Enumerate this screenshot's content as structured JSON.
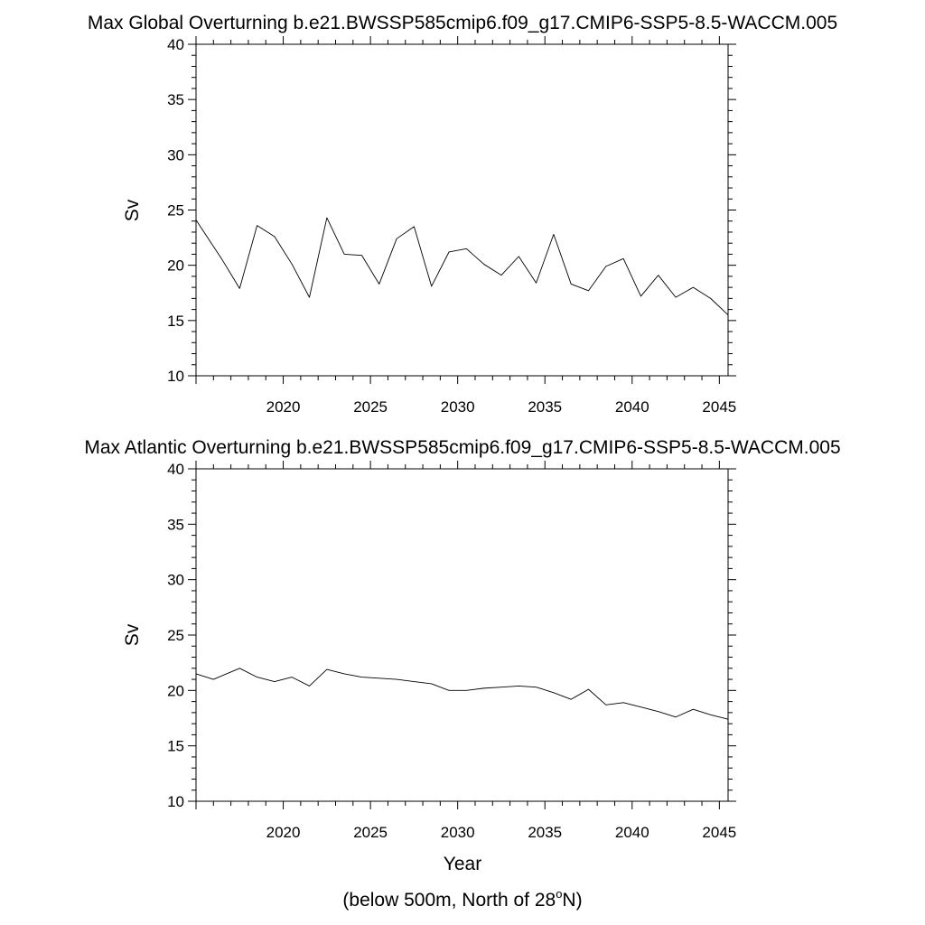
{
  "chart_data": [
    {
      "type": "line",
      "title": "Max Global Overturning b.e21.BWSSP585cmip6.f09_g17.CMIP6-SSP5-8.5-WACCM.005",
      "xlabel": "",
      "ylabel": "Sv",
      "xlim": [
        2015,
        2045.5
      ],
      "ylim": [
        10,
        40
      ],
      "x_ticks": [
        2020,
        2025,
        2030,
        2035,
        2040,
        2045
      ],
      "y_ticks": [
        10,
        15,
        20,
        25,
        30,
        35,
        40
      ],
      "grid": false,
      "x": [
        2015,
        2016.5,
        2017.5,
        2018.5,
        2019.5,
        2020.5,
        2021.5,
        2022.5,
        2023.5,
        2024.5,
        2025.5,
        2026.5,
        2027.5,
        2028.5,
        2029.5,
        2030.5,
        2031.5,
        2032.5,
        2033.5,
        2034.5,
        2035.5,
        2036.5,
        2037.5,
        2038.5,
        2039.5,
        2040.5,
        2041.5,
        2042.5,
        2043.5,
        2044.5,
        2045.5
      ],
      "series": [
        {
          "values": [
            24.1,
            20.5,
            17.9,
            23.6,
            22.6,
            20.1,
            17.1,
            24.3,
            21.0,
            20.9,
            18.3,
            22.4,
            23.5,
            18.1,
            21.2,
            21.5,
            20.1,
            19.1,
            20.8,
            18.4,
            22.8,
            18.3,
            17.7,
            19.9,
            20.6,
            17.2,
            19.1,
            17.1,
            18.0,
            17.0,
            15.5
          ]
        }
      ]
    },
    {
      "type": "line",
      "title": "Max Atlantic Overturning b.e21.BWSSP585cmip6.f09_g17.CMIP6-SSP5-8.5-WACCM.005",
      "xlabel": "Year",
      "ylabel": "Sv",
      "xlim": [
        2015,
        2045.5
      ],
      "ylim": [
        10,
        40
      ],
      "x_ticks": [
        2020,
        2025,
        2030,
        2035,
        2040,
        2045
      ],
      "y_ticks": [
        10,
        15,
        20,
        25,
        30,
        35,
        40
      ],
      "grid": false,
      "x": [
        2015,
        2016,
        2017.5,
        2018.5,
        2019.5,
        2020.5,
        2021.5,
        2022.5,
        2023.5,
        2024.5,
        2025.5,
        2026.5,
        2027.5,
        2028.5,
        2029.5,
        2030.5,
        2031.5,
        2032.5,
        2033.5,
        2034.5,
        2035.5,
        2036.5,
        2037.5,
        2038.5,
        2039.5,
        2040.5,
        2041.5,
        2042.5,
        2043.5,
        2044.5,
        2045.5
      ],
      "series": [
        {
          "values": [
            21.5,
            21.0,
            22.0,
            21.2,
            20.8,
            21.2,
            20.4,
            21.9,
            21.5,
            21.2,
            21.1,
            21.0,
            20.8,
            20.6,
            20.0,
            20.0,
            20.2,
            20.3,
            20.4,
            20.3,
            19.8,
            19.2,
            20.1,
            18.7,
            18.9,
            18.5,
            18.1,
            17.6,
            18.3,
            17.8,
            17.4
          ]
        }
      ]
    }
  ],
  "footnote": {
    "prefix": "(below 500m, North of 28",
    "superscript": "o",
    "suffix": "N)"
  }
}
